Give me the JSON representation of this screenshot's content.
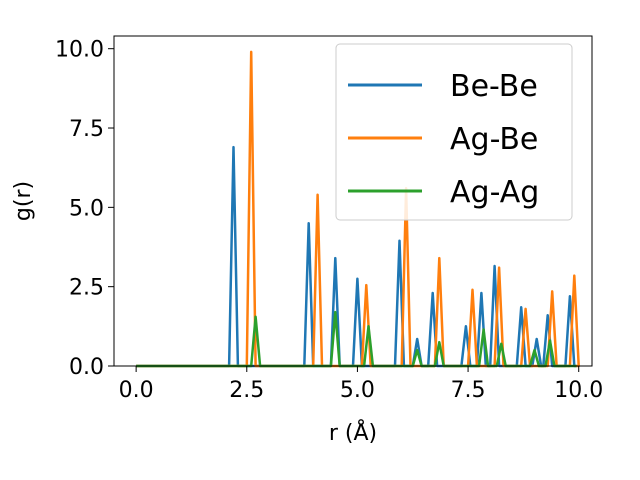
{
  "chart_data": {
    "type": "line",
    "xlabel": "r (Å)",
    "ylabel": "g(r)",
    "xlim": [
      -0.5,
      10.3
    ],
    "ylim": [
      0,
      10.4
    ],
    "xticks": [
      "0.0",
      "2.5",
      "5.0",
      "7.5",
      "10.0"
    ],
    "xtick_values": [
      0,
      2.5,
      5,
      7.5,
      10
    ],
    "yticks": [
      "0.0",
      "2.5",
      "5.0",
      "7.5",
      "10.0"
    ],
    "ytick_values": [
      0,
      2.5,
      5,
      7.5,
      10
    ],
    "legend_position": "top-right",
    "series": [
      {
        "name": "Be-Be",
        "color": "#1f77b4",
        "peaks": [
          [
            2.2,
            6.9
          ],
          [
            3.9,
            4.5
          ],
          [
            4.5,
            3.4
          ],
          [
            5.0,
            2.75
          ],
          [
            5.95,
            3.95
          ],
          [
            6.35,
            0.85
          ],
          [
            6.7,
            2.3
          ],
          [
            7.45,
            1.25
          ],
          [
            7.8,
            2.3
          ],
          [
            8.1,
            3.15
          ],
          [
            8.7,
            1.85
          ],
          [
            9.05,
            0.85
          ],
          [
            9.3,
            1.6
          ],
          [
            9.8,
            2.2
          ]
        ]
      },
      {
        "name": "Ag-Be",
        "color": "#ff7f0e",
        "peaks": [
          [
            2.6,
            9.9
          ],
          [
            4.1,
            5.4
          ],
          [
            5.2,
            2.55
          ],
          [
            6.1,
            5.6
          ],
          [
            6.85,
            3.4
          ],
          [
            7.6,
            2.4
          ],
          [
            8.2,
            3.1
          ],
          [
            8.8,
            1.8
          ],
          [
            9.4,
            2.35
          ],
          [
            9.9,
            2.85
          ]
        ]
      },
      {
        "name": "Ag-Ag",
        "color": "#2ca02c",
        "peaks": [
          [
            2.7,
            1.55
          ],
          [
            4.5,
            1.7
          ],
          [
            5.25,
            1.25
          ],
          [
            6.35,
            0.5
          ],
          [
            6.85,
            0.75
          ],
          [
            7.85,
            1.15
          ],
          [
            8.25,
            0.7
          ],
          [
            9.0,
            0.5
          ],
          [
            9.35,
            0.8
          ]
        ]
      }
    ]
  }
}
